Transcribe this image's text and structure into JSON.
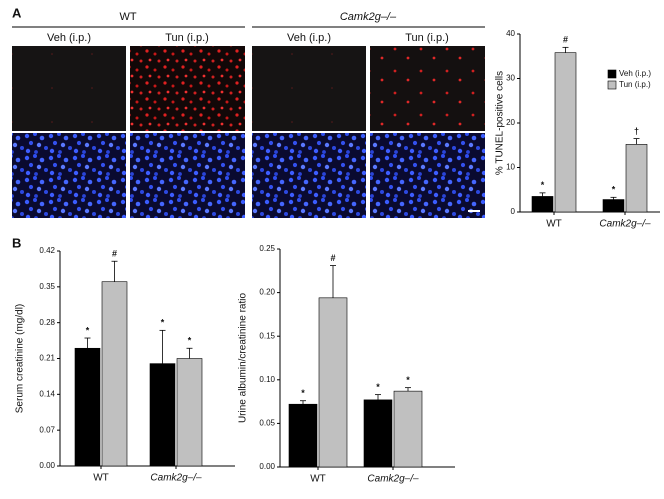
{
  "figure": {
    "panel_labels": [
      "A",
      "B"
    ],
    "groups": [
      "WT",
      "Camk2g–/–"
    ],
    "conditions": [
      "Veh (i.p.)",
      "Tun (i.p.)"
    ]
  },
  "chart_data": [
    {
      "type": "bar",
      "y_label": "% TUNEL-positive cells",
      "categories": [
        "WT",
        "Camk2g–/–"
      ],
      "series": [
        {
          "name": "Veh (i.p.)",
          "color": "#000000",
          "values": [
            3.5,
            2.8
          ],
          "errors": [
            0.8,
            0.5
          ],
          "markers": [
            "*",
            "*"
          ]
        },
        {
          "name": "Tun (i.p.)",
          "color": "#c0c0c0",
          "values": [
            35.8,
            15.2
          ],
          "errors": [
            1.2,
            1.3
          ],
          "markers": [
            "#",
            "†"
          ]
        }
      ],
      "ylim": [
        0,
        40
      ],
      "yticks": [
        0,
        10,
        20,
        30,
        40
      ],
      "legend": "upper right"
    },
    {
      "type": "bar",
      "y_label": "Serum creatinine (mg/dl)",
      "categories": [
        "WT",
        "Camk2g–/–"
      ],
      "series": [
        {
          "color": "#000000",
          "values": [
            0.23,
            0.2
          ],
          "errors": [
            0.02,
            0.065
          ],
          "markers": [
            "*",
            "*"
          ]
        },
        {
          "color": "#c0c0c0",
          "values": [
            0.36,
            0.21
          ],
          "errors": [
            0.04,
            0.02
          ],
          "markers": [
            "#",
            "*"
          ]
        }
      ],
      "ylim": [
        0,
        0.42
      ],
      "yticks": [
        {
          "value": 0,
          "label": "0.00"
        },
        0.07,
        0.14,
        0.21,
        0.28,
        0.35,
        0.42
      ]
    },
    {
      "type": "bar",
      "y_label": "Urine albumin/creatinine ratio",
      "categories": [
        "WT",
        "Camk2g–/–"
      ],
      "series": [
        {
          "color": "#000000",
          "values": [
            0.072,
            0.077
          ],
          "errors": [
            0.004,
            0.006
          ],
          "markers": [
            "*",
            "*"
          ]
        },
        {
          "color": "#c0c0c0",
          "values": [
            0.194,
            0.087
          ],
          "errors": [
            0.037,
            0.004
          ],
          "markers": [
            "#",
            "*"
          ]
        }
      ],
      "ylim": [
        0,
        0.25
      ],
      "yticks": [
        {
          "value": 0,
          "label": "0.00"
        },
        0.05,
        {
          "value": 0.1,
          "label": "0.10"
        },
        0.15,
        {
          "value": 0.2,
          "label": "0.20"
        },
        0.25
      ]
    }
  ]
}
